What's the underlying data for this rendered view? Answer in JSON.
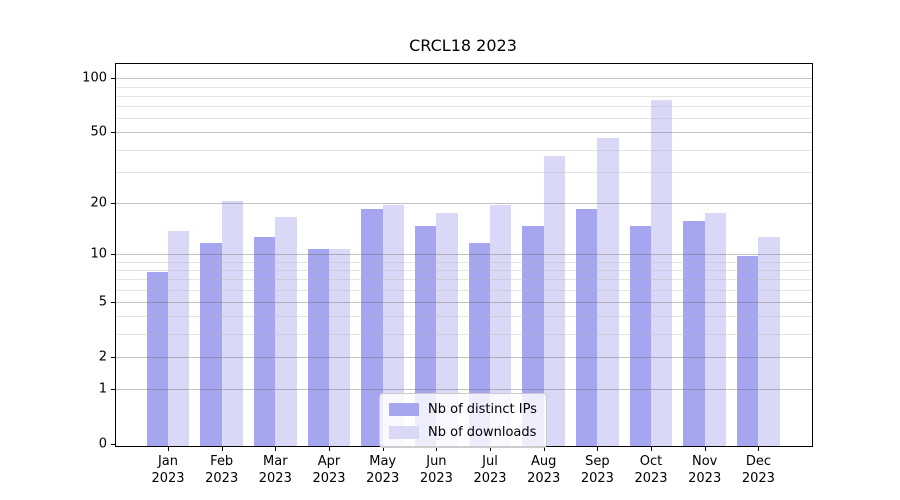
{
  "chart_data": {
    "type": "bar",
    "title": "CRCL18 2023",
    "categories": [
      "Jan",
      "Feb",
      "Mar",
      "Apr",
      "May",
      "Jun",
      "Jul",
      "Aug",
      "Sep",
      "Oct",
      "Nov",
      "Dec"
    ],
    "year_label": "2023",
    "series": [
      {
        "key": "ips",
        "name": "Nb of distinct IPs",
        "color": "#a5a5f0",
        "values": [
          8,
          12,
          13,
          11,
          19,
          15,
          12,
          15,
          19,
          15,
          16,
          10
        ]
      },
      {
        "key": "downloads",
        "name": "Nb of downloads",
        "color": "#d9d9f7",
        "values": [
          14,
          21,
          17,
          11,
          20,
          18,
          20,
          38,
          48,
          78,
          18,
          13
        ]
      }
    ],
    "y_scale": "log1p",
    "y_major_ticks": [
      0,
      1,
      2,
      5,
      10,
      20,
      50,
      100
    ],
    "y_minor_ticks": [
      3,
      4,
      6,
      7,
      8,
      9,
      30,
      40,
      60,
      70,
      80,
      90
    ],
    "ylim": [
      0,
      123
    ],
    "xlabel": "",
    "ylabel": "",
    "grid": true,
    "legend_position": "lower center"
  }
}
